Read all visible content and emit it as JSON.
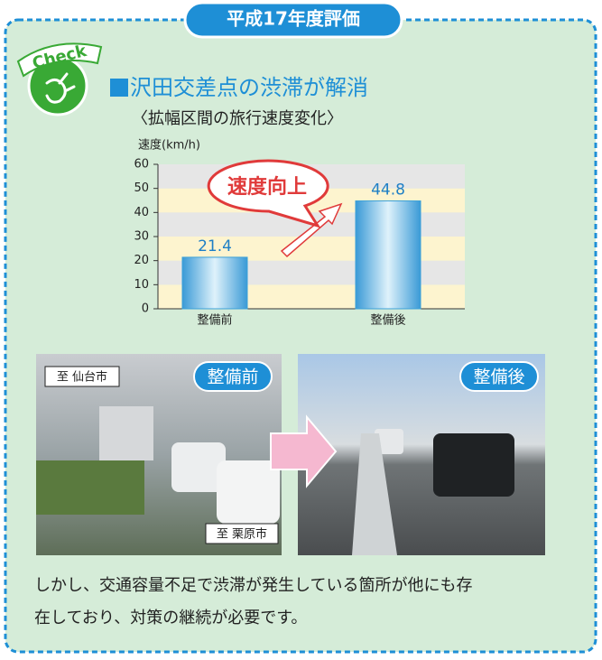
{
  "badge": "平成17年度評価",
  "check": "Check",
  "heading": "沢田交差点の渋滞が解消",
  "subheading": "〈拡幅区間の旅行速度変化〉",
  "chart_data": {
    "type": "bar",
    "y_label": "速度(km/h)",
    "categories": [
      "整備前",
      "整備後"
    ],
    "values": [
      21.4,
      44.8
    ],
    "color": "#3aa0d8",
    "ylim": [
      0,
      60
    ],
    "yticks": [
      0,
      10,
      20,
      30,
      40,
      50,
      60
    ],
    "annotation": "速度向上"
  },
  "photos": [
    {
      "label": "整備前",
      "signs": [
        "至 仙台市",
        "至 栗原市"
      ]
    },
    {
      "label": "整備後"
    }
  ],
  "body": [
    "しかし、交通容量不足で渋滞が発生している箇所が他にも存",
    "在しており、対策の継続が必要です。"
  ]
}
